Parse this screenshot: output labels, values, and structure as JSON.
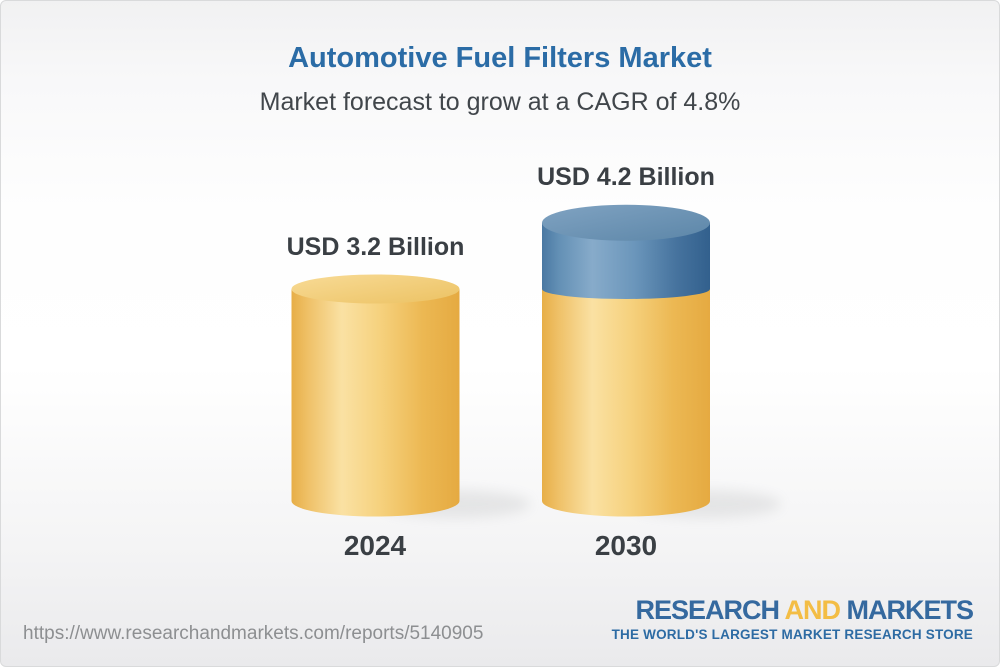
{
  "header": {
    "title": "Automotive Fuel Filters Market",
    "subtitle": "Market forecast to grow at a CAGR of 4.8%"
  },
  "chart_data": {
    "type": "bar",
    "variant": "3d-cylinder",
    "title": "Automotive Fuel Filters Market",
    "subtitle": "Market forecast to grow at a CAGR of 4.8%",
    "categories": [
      "2024",
      "2030"
    ],
    "values": [
      3.2,
      4.2
    ],
    "unit": "USD Billion",
    "value_labels": [
      "USD 3.2 Billion",
      "USD 4.2 Billion"
    ],
    "cagr_percent": 4.8,
    "legend": "none",
    "grid": "off",
    "colors": {
      "base_segment": "#f3cd7e",
      "growth_segment": "#6793b8",
      "label_text": "#3a3f44",
      "title_blue": "#2b6ca6"
    }
  },
  "footer": {
    "url": "https://www.researchandmarkets.com/reports/5140905",
    "logo": {
      "research": "RESEARCH",
      "and": "AND",
      "markets": "MARKETS",
      "tagline": "THE WORLD'S LARGEST MARKET RESEARCH STORE",
      "blue": "#35699f",
      "yellow": "#f3bd45"
    }
  }
}
